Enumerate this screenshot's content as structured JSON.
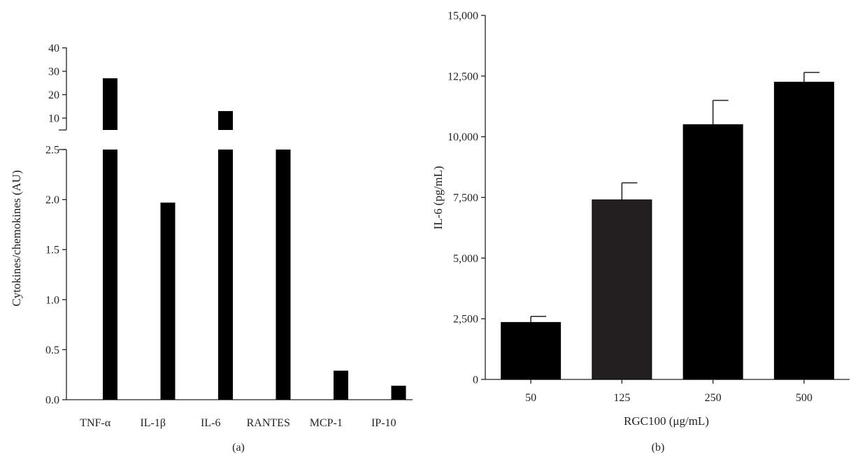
{
  "chart_data": [
    {
      "type": "bar",
      "panel_label": "(a)",
      "ylabel": "Cytokines/chemokines (AU)",
      "xlabel": "",
      "axis_break": true,
      "lower_segment": {
        "ylim": [
          0,
          2.5
        ],
        "ticks": [
          "0.0",
          "0.5",
          "1.0",
          "1.5",
          "2.0",
          "2.5"
        ]
      },
      "upper_segment": {
        "ylim": [
          0,
          40
        ],
        "ticks": [
          "10",
          "20",
          "30",
          "40"
        ]
      },
      "categories": [
        "TNF-α",
        "IL-1β",
        "IL-6",
        "RANTES",
        "MCP-1",
        "IP-10"
      ],
      "values": [
        27,
        1.97,
        13,
        2.6,
        0.29,
        0.14
      ],
      "bar_color": "#000000",
      "grid": false
    },
    {
      "type": "bar",
      "panel_label": "(b)",
      "ylabel": "IL-6 (pg/mL)",
      "xlabel": "RGC100 (μg/mL)",
      "ylim": [
        0,
        15000
      ],
      "yticks": [
        0,
        2500,
        5000,
        7500,
        10000,
        12500,
        15000
      ],
      "ytick_labels": [
        "0",
        "2,500",
        "5,000",
        "7,500",
        "10,000",
        "12,500",
        "15,000"
      ],
      "categories": [
        "50",
        "125",
        "250",
        "500"
      ],
      "values": [
        2350,
        7400,
        10500,
        12250
      ],
      "errors": [
        250,
        700,
        1000,
        400
      ],
      "bar_colors": [
        "#000000",
        "#231f20",
        "#000000",
        "#000000"
      ],
      "grid": false
    }
  ]
}
